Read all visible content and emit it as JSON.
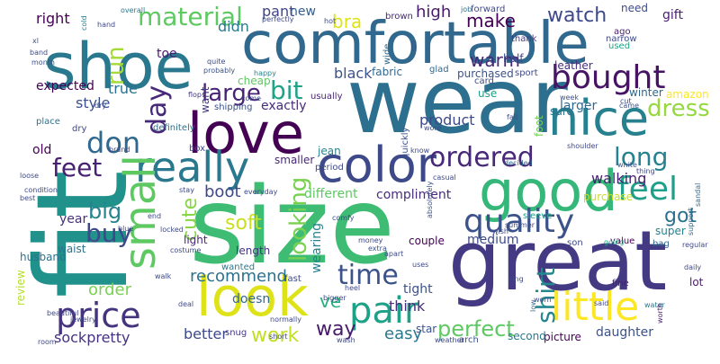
{
  "word_cloud": {
    "words": [
      {
        "text": "wear",
        "color": "#2c6f8e"
      },
      {
        "text": "size",
        "color": "#3fbc73"
      },
      {
        "text": "fit",
        "color": "#21918c"
      },
      {
        "text": "great",
        "color": "#443a83"
      },
      {
        "text": "comfortable",
        "color": "#31688e"
      },
      {
        "text": "shoe",
        "color": "#2a788e"
      },
      {
        "text": "look",
        "color": "#dde318"
      },
      {
        "text": "love",
        "color": "#440154"
      },
      {
        "text": "good",
        "color": "#35b779"
      },
      {
        "text": "nice",
        "color": "#27808e"
      },
      {
        "text": "color",
        "color": "#3e4989"
      },
      {
        "text": "really",
        "color": "#2a788e"
      },
      {
        "text": "pair",
        "color": "#1fa188"
      },
      {
        "text": "little",
        "color": "#fde725"
      },
      {
        "text": "price",
        "color": "#46337e"
      },
      {
        "text": "small",
        "color": "#5ec962"
      },
      {
        "text": "quality",
        "color": "#3b528b"
      },
      {
        "text": "bought",
        "color": "#471365"
      },
      {
        "text": "feel",
        "color": "#1f9e89"
      },
      {
        "text": "ordered",
        "color": "#482878"
      },
      {
        "text": "material",
        "color": "#5ec962"
      },
      {
        "text": "don",
        "color": "#31688e"
      },
      {
        "text": "feet",
        "color": "#482173"
      },
      {
        "text": "long",
        "color": "#26828e"
      },
      {
        "text": "time",
        "color": "#3b528b"
      },
      {
        "text": "day",
        "color": "#482878"
      },
      {
        "text": "large",
        "color": "#482475"
      },
      {
        "text": "bit",
        "color": "#20a386"
      },
      {
        "text": "buy",
        "color": "#3e4989"
      },
      {
        "text": "shirt",
        "color": "#23888e"
      },
      {
        "text": "looking",
        "color": "#7ad151"
      },
      {
        "text": "dress",
        "color": "#95d840"
      },
      {
        "text": "perfect",
        "color": "#5ec962"
      },
      {
        "text": "got",
        "color": "#2c728e"
      },
      {
        "text": "big",
        "color": "#26828e"
      },
      {
        "text": "soft",
        "color": "#c8e020"
      },
      {
        "text": "work",
        "color": "#c2df23"
      },
      {
        "text": "cute",
        "color": "#89d548"
      },
      {
        "text": "run",
        "color": "#a5db36"
      },
      {
        "text": "make",
        "color": "#440154"
      },
      {
        "text": "watch",
        "color": "#3e4989"
      },
      {
        "text": "warm",
        "color": "#482878"
      },
      {
        "text": "boot",
        "color": "#3e4989"
      },
      {
        "text": "recommend",
        "color": "#2c728e"
      },
      {
        "text": "way",
        "color": "#481a6c"
      },
      {
        "text": "ve",
        "color": "#29af7f"
      },
      {
        "text": "order",
        "color": "#7ad151"
      },
      {
        "text": "sockpretty",
        "color": "#46327e"
      },
      {
        "text": "better",
        "color": "#3e4989"
      },
      {
        "text": "easy",
        "color": "#2a788e"
      },
      {
        "text": "wearing",
        "color": "#26828e"
      },
      {
        "text": "tight",
        "color": "#3b528b"
      },
      {
        "text": "think",
        "color": "#472d7b"
      },
      {
        "text": "medium",
        "color": "#3e4989"
      },
      {
        "text": "compliment",
        "color": "#472d7b"
      },
      {
        "text": "walking",
        "color": "#481f70"
      },
      {
        "text": "product",
        "color": "#3e4989"
      },
      {
        "text": "high",
        "color": "#481a6c"
      },
      {
        "text": "right",
        "color": "#440154"
      },
      {
        "text": "true",
        "color": "#2c728e"
      },
      {
        "text": "pant",
        "color": "#414487"
      },
      {
        "text": "bra",
        "color": "#dde318"
      },
      {
        "text": "new",
        "color": "#355f8d"
      },
      {
        "text": "didn",
        "color": "#2a788e"
      },
      {
        "text": "year",
        "color": "#46327e"
      },
      {
        "text": "black",
        "color": "#3b528b"
      },
      {
        "text": "exactly",
        "color": "#472d7b"
      },
      {
        "text": "style",
        "color": "#3b528b"
      },
      {
        "text": "expected",
        "color": "#440154"
      },
      {
        "text": "larger",
        "color": "#31688e"
      },
      {
        "text": "different",
        "color": "#5ec962"
      },
      {
        "text": "foot",
        "color": "#73d056"
      },
      {
        "text": "half",
        "color": "#3e4989"
      },
      {
        "text": "ll",
        "color": "#3b528b"
      },
      {
        "text": "fabric",
        "color": "#31688e"
      },
      {
        "text": "old",
        "color": "#440154"
      },
      {
        "text": "light",
        "color": "#482878"
      },
      {
        "text": "length",
        "color": "#46337e"
      },
      {
        "text": "review",
        "color": "#b5de2b"
      },
      {
        "text": "waist",
        "color": "#2c728e"
      },
      {
        "text": "gift",
        "color": "#481f70"
      },
      {
        "text": "need",
        "color": "#3e4989"
      },
      {
        "text": "daughter",
        "color": "#3b528b"
      },
      {
        "text": "picture",
        "color": "#440154"
      },
      {
        "text": "second",
        "color": "#2a788e"
      },
      {
        "text": "amazon",
        "color": "#fde725"
      },
      {
        "text": "cheap",
        "color": "#5ec962"
      },
      {
        "text": "toe",
        "color": "#481a6c"
      },
      {
        "text": "leather",
        "color": "#472d7b"
      },
      {
        "text": "purchased",
        "color": "#3b528b"
      },
      {
        "text": "glad",
        "color": "#31688e"
      },
      {
        "text": "winter",
        "color": "#31688e"
      },
      {
        "text": "sure",
        "color": "#2c728e"
      },
      {
        "text": "lot",
        "color": "#481a6c"
      },
      {
        "text": "doesn",
        "color": "#31688e"
      },
      {
        "text": "couple",
        "color": "#440154"
      },
      {
        "text": "wanted",
        "color": "#2a788e"
      },
      {
        "text": "husband",
        "color": "#2c728e"
      },
      {
        "text": "fast",
        "color": "#3e4989"
      },
      {
        "text": "usually",
        "color": "#482475"
      },
      {
        "text": "quickly",
        "color": "#3b528b"
      },
      {
        "text": "definitely",
        "color": "#2c728e"
      },
      {
        "text": "smaller",
        "color": "#482878"
      },
      {
        "text": "jean",
        "color": "#26828e"
      },
      {
        "text": "period",
        "color": "#3e4989"
      },
      {
        "text": "purchase",
        "color": "#c8e020"
      },
      {
        "text": "sleeve",
        "color": "#1fa188"
      },
      {
        "text": "son",
        "color": "#3e4989"
      },
      {
        "text": "value",
        "color": "#440154"
      },
      {
        "text": "bag",
        "color": "#31688e"
      },
      {
        "text": "super",
        "color": "#26828e"
      },
      {
        "text": "fine",
        "color": "#481f70"
      },
      {
        "text": "star",
        "color": "#3b528b"
      },
      {
        "text": "arch",
        "color": "#3b528b"
      },
      {
        "text": "snug",
        "color": "#443983"
      },
      {
        "text": "place",
        "color": "#2c728e"
      },
      {
        "text": "dry",
        "color": "#3e4989"
      },
      {
        "text": "want",
        "color": "#443983"
      },
      {
        "text": "box",
        "color": "#3e4989"
      },
      {
        "text": "shipping",
        "color": "#3b528b"
      },
      {
        "text": "use",
        "color": "#1f9e89"
      },
      {
        "text": "card",
        "color": "#3e4989"
      },
      {
        "text": "wide",
        "color": "#31688e"
      },
      {
        "text": "sport",
        "color": "#3e4989"
      },
      {
        "text": "used",
        "color": "#20a386"
      },
      {
        "text": "narrow",
        "color": "#3e4989"
      },
      {
        "text": "thank",
        "color": "#443983"
      },
      {
        "text": "ago",
        "color": "#481f70"
      },
      {
        "text": "brown",
        "color": "#482878"
      },
      {
        "text": "forward",
        "color": "#3e4989"
      },
      {
        "text": "job",
        "color": "#2c728e"
      },
      {
        "text": "overall",
        "color": "#2a788e"
      },
      {
        "text": "cold",
        "color": "#26828e"
      },
      {
        "text": "hand",
        "color": "#3e4989"
      },
      {
        "text": "xl",
        "color": "#3b528b"
      },
      {
        "text": "band",
        "color": "#3e4989"
      },
      {
        "text": "month",
        "color": "#3b528b"
      },
      {
        "text": "happy",
        "color": "#26828e"
      },
      {
        "text": "quite",
        "color": "#3e4989"
      },
      {
        "text": "probably",
        "color": "#3b528b"
      },
      {
        "text": "come",
        "color": "#3e4989"
      },
      {
        "text": "dry",
        "color": "#3e4989"
      },
      {
        "text": "flop",
        "color": "#443983"
      },
      {
        "text": "cut",
        "color": "#3e4989"
      },
      {
        "text": "came",
        "color": "#3b528b"
      },
      {
        "text": "week",
        "color": "#3b528b"
      },
      {
        "text": "fall",
        "color": "#3e4989"
      },
      {
        "text": "worn",
        "color": "#3e4989"
      },
      {
        "text": "ring",
        "color": "#3e4989"
      },
      {
        "text": "low",
        "color": "#31688e"
      },
      {
        "text": "said",
        "color": "#3e4989"
      },
      {
        "text": "water",
        "color": "#2a788e"
      },
      {
        "text": "worth",
        "color": "#481f70"
      },
      {
        "text": "daily",
        "color": "#3e4989"
      },
      {
        "text": "regular",
        "color": "#3e4989"
      },
      {
        "text": "support",
        "color": "#31688e"
      },
      {
        "text": "sandal",
        "color": "#31688e"
      },
      {
        "text": "thing",
        "color": "#3e4989"
      },
      {
        "text": "white",
        "color": "#3b528b"
      },
      {
        "text": "shoulder",
        "color": "#3e4989"
      },
      {
        "text": "decided",
        "color": "#31688e"
      },
      {
        "text": "casual",
        "color": "#3e4989"
      },
      {
        "text": "absolutely",
        "color": "#3b528b"
      },
      {
        "text": "wish",
        "color": "#3e4989"
      },
      {
        "text": "summer",
        "color": "#3e4989"
      },
      {
        "text": "going",
        "color": "#20a386"
      },
      {
        "text": "money",
        "color": "#3e4989"
      },
      {
        "text": "extra",
        "color": "#3b528b"
      },
      {
        "text": "apart",
        "color": "#3e4989"
      },
      {
        "text": "comfy",
        "color": "#3e4989"
      },
      {
        "text": "know",
        "color": "#3e4989"
      },
      {
        "text": "wore",
        "color": "#3e4989"
      },
      {
        "text": "uses",
        "color": "#3e4989"
      },
      {
        "text": "heel",
        "color": "#3e4989"
      },
      {
        "text": "bigger",
        "color": "#3e4989"
      },
      {
        "text": "wash",
        "color": "#3e4989"
      },
      {
        "text": "short",
        "color": "#3e4989"
      },
      {
        "text": "normally",
        "color": "#3e4989"
      },
      {
        "text": "deal",
        "color": "#3e4989"
      },
      {
        "text": "walk",
        "color": "#3e4989"
      },
      {
        "text": "costume",
        "color": "#3e4989"
      },
      {
        "text": "locked",
        "color": "#3e4989"
      },
      {
        "text": "end",
        "color": "#3e4989"
      },
      {
        "text": "blue",
        "color": "#3e4989"
      },
      {
        "text": "best",
        "color": "#3e4989"
      },
      {
        "text": "loose",
        "color": "#3e4989"
      },
      {
        "text": "condition",
        "color": "#3e4989"
      },
      {
        "text": "brand",
        "color": "#3e4989"
      },
      {
        "text": "everyday",
        "color": "#3e4989"
      },
      {
        "text": "stay",
        "color": "#3e4989"
      },
      {
        "text": "beautiful",
        "color": "#3e4989"
      },
      {
        "text": "jewelry",
        "color": "#3e4989"
      },
      {
        "text": "room",
        "color": "#3e4989"
      },
      {
        "text": "weather",
        "color": "#3e4989"
      },
      {
        "text": "perfectly",
        "color": "#3e4989"
      },
      {
        "text": "hot",
        "color": "#3e4989"
      }
    ]
  }
}
